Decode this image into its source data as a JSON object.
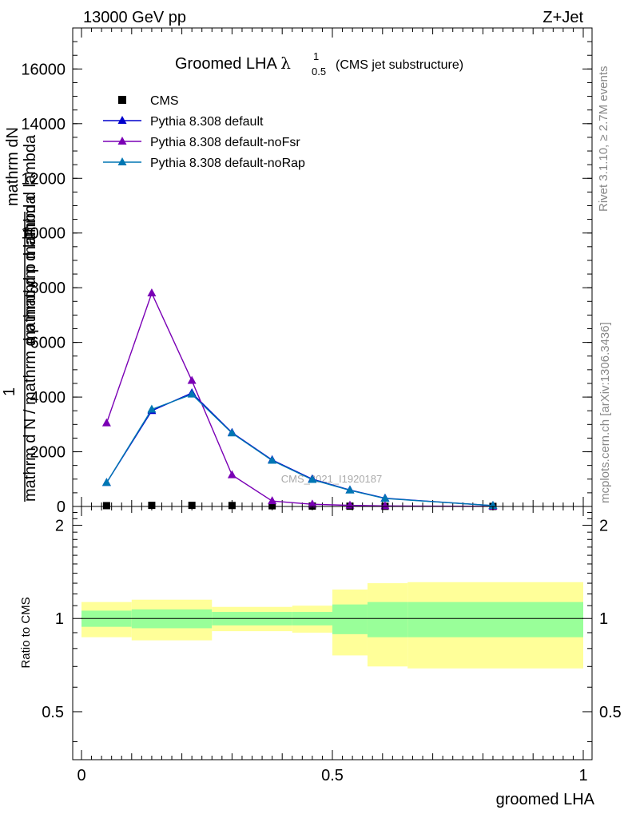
{
  "header": {
    "energy_label": "13000 GeV pp",
    "process_label": "Z+Jet"
  },
  "side_labels": {
    "rivet": "Rivet 3.1.10, ≥ 2.7M events",
    "mcplots": "mcplots.cern.ch [arXiv:1306.3436]"
  },
  "watermark": "CMS_2021_I1920187",
  "colors": {
    "cms": "#000000",
    "default": "#0000cc",
    "noFsr": "#7a00b5",
    "noRap": "#0077b3",
    "band_inner": "#99ff99",
    "band_outer": "#ffff99"
  },
  "chart_data": [
    {
      "type": "line",
      "title_main": "Groomed LHA",
      "title_lambda": "λ",
      "title_sup": "1",
      "title_sub": "0.5",
      "title_note": "(CMS jet substructure)",
      "ylabel_top": "mathrm dN",
      "ylabel_lower": "mathrm d p mathrm d lambda",
      "ylabel_one": "1",
      "ylabel_bottom": "mathrm d N / mathrm d p mathrm d lambda",
      "xlim": [
        0,
        1
      ],
      "ylim": [
        0,
        17500
      ],
      "yticks": [
        0,
        2000,
        4000,
        6000,
        8000,
        10000,
        12000,
        14000,
        16000
      ],
      "ytick_labels": [
        "0",
        "2000",
        "4000",
        "6000",
        "8000",
        "10000",
        "12000",
        "14000",
        "16000"
      ],
      "x": [
        0.05,
        0.14,
        0.22,
        0.3,
        0.38,
        0.46,
        0.535,
        0.605,
        0.82
      ],
      "series": [
        {
          "name": "CMS",
          "key": "cms",
          "marker": "square",
          "values": [
            30,
            40,
            40,
            35,
            25,
            15,
            10,
            5,
            2
          ]
        },
        {
          "name": "Pythia 8.308 default",
          "key": "default",
          "marker": "triangle",
          "values": [
            870,
            3500,
            4150,
            2700,
            1700,
            1000,
            600,
            300,
            30
          ]
        },
        {
          "name": "Pythia 8.308 default-noFsr",
          "key": "noFsr",
          "marker": "triangle",
          "values": [
            3050,
            7800,
            4600,
            1150,
            200,
            80,
            40,
            20,
            5
          ]
        },
        {
          "name": "Pythia 8.308 default-noRap",
          "key": "noRap",
          "marker": "triangle",
          "values": [
            870,
            3550,
            4100,
            2680,
            1680,
            980,
            590,
            290,
            30
          ]
        }
      ]
    },
    {
      "type": "area",
      "ylabel": "Ratio to CMS",
      "xlabel": "groomed LHA",
      "xlim": [
        0,
        1
      ],
      "ylim": [
        0.35,
        2.3
      ],
      "yticks": [
        0.5,
        1,
        2
      ],
      "ytick_labels": [
        "0.5",
        "1",
        "2"
      ],
      "xticks": [
        0,
        0.5,
        1
      ],
      "xtick_labels": [
        "0",
        "0.5",
        "1"
      ],
      "reference": 1,
      "bins": [
        {
          "lo": 0.0,
          "hi": 0.1,
          "inner": [
            0.94,
            1.06
          ],
          "outer": [
            0.87,
            1.13
          ]
        },
        {
          "lo": 0.1,
          "hi": 0.26,
          "inner": [
            0.93,
            1.07
          ],
          "outer": [
            0.85,
            1.15
          ]
        },
        {
          "lo": 0.26,
          "hi": 0.42,
          "inner": [
            0.95,
            1.05
          ],
          "outer": [
            0.91,
            1.09
          ]
        },
        {
          "lo": 0.42,
          "hi": 0.5,
          "inner": [
            0.95,
            1.05
          ],
          "outer": [
            0.9,
            1.1
          ]
        },
        {
          "lo": 0.5,
          "hi": 0.57,
          "inner": [
            0.89,
            1.11
          ],
          "outer": [
            0.76,
            1.24
          ]
        },
        {
          "lo": 0.57,
          "hi": 0.65,
          "inner": [
            0.87,
            1.13
          ],
          "outer": [
            0.7,
            1.3
          ]
        },
        {
          "lo": 0.65,
          "hi": 1.0,
          "inner": [
            0.87,
            1.13
          ],
          "outer": [
            0.69,
            1.31
          ]
        }
      ]
    }
  ]
}
